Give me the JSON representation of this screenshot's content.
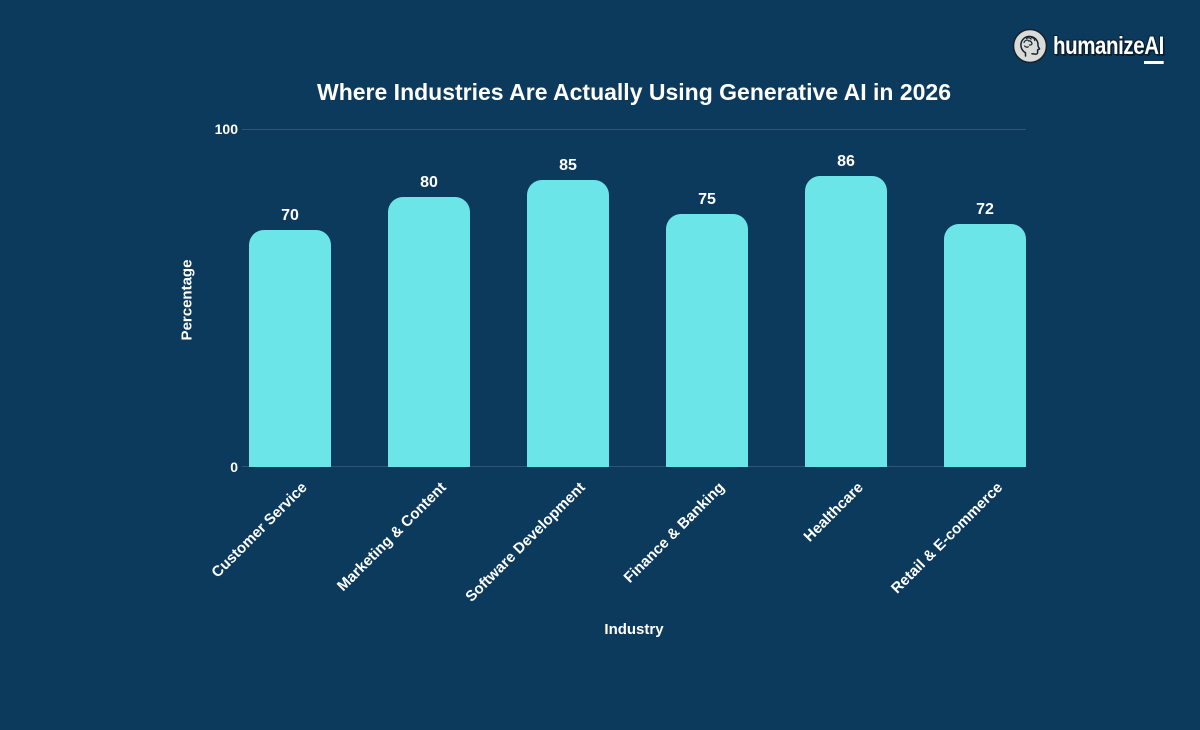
{
  "logo": {
    "brand": "humanize",
    "suffix": "AI",
    "icon": "brain-head-icon"
  },
  "colors": {
    "background": "#0C3A5C",
    "bar": "#6CE5E8",
    "text": "#FFFFFF",
    "gridline": "rgba(255,255,255,0.14)"
  },
  "chart_data": {
    "type": "bar",
    "title": "Where Industries Are Actually Using Generative AI in 2026",
    "categories": [
      "Customer Service",
      "Marketing & Content",
      "Software Development",
      "Finance & Banking",
      "Healthcare",
      "Retail & E-commerce"
    ],
    "values": [
      70,
      80,
      85,
      75,
      86,
      72
    ],
    "xlabel": "Industry",
    "ylabel": "Percentage",
    "ylim": [
      0,
      100
    ],
    "yticks": [
      0,
      100
    ],
    "grid": "horizontal at yticks",
    "legend": "none",
    "value_labels_shown": true,
    "bar_color": "#6CE5E8"
  }
}
